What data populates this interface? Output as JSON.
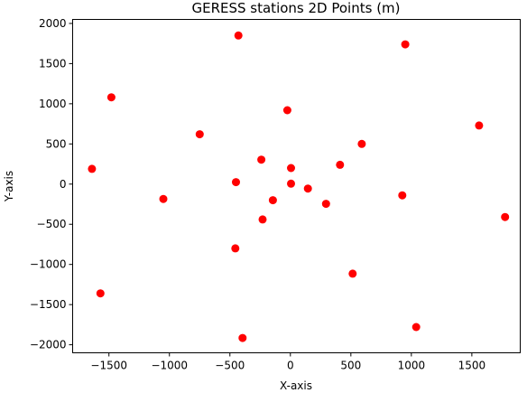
{
  "chart_data": {
    "type": "scatter",
    "title": "GERESS stations 2D Points (m)",
    "xlabel": "X-axis",
    "ylabel": "Y-axis",
    "xlim": [
      -1800,
      1900
    ],
    "ylim": [
      -2100,
      2050
    ],
    "xticks": [
      -1500,
      -1000,
      -500,
      0,
      500,
      1000,
      1500
    ],
    "yticks": [
      -2000,
      -1500,
      -1000,
      -500,
      0,
      500,
      1000,
      1500,
      2000
    ],
    "grid": false,
    "legend": "none",
    "marker_color": "#ff0000",
    "series": [
      {
        "points": [
          {
            "x": -430,
            "y": 1850
          },
          {
            "x": 950,
            "y": 1740
          },
          {
            "x": -1480,
            "y": 1080
          },
          {
            "x": -25,
            "y": 920
          },
          {
            "x": 1560,
            "y": 730
          },
          {
            "x": -750,
            "y": 620
          },
          {
            "x": 590,
            "y": 500
          },
          {
            "x": -240,
            "y": 305
          },
          {
            "x": 410,
            "y": 240
          },
          {
            "x": 5,
            "y": 200
          },
          {
            "x": -1640,
            "y": 190
          },
          {
            "x": -450,
            "y": 25
          },
          {
            "x": 5,
            "y": 5
          },
          {
            "x": 145,
            "y": -55
          },
          {
            "x": 925,
            "y": -140
          },
          {
            "x": -1050,
            "y": -185
          },
          {
            "x": -145,
            "y": -200
          },
          {
            "x": 295,
            "y": -245
          },
          {
            "x": 1775,
            "y": -410
          },
          {
            "x": -230,
            "y": -440
          },
          {
            "x": -455,
            "y": -800
          },
          {
            "x": 515,
            "y": -1115
          },
          {
            "x": -1570,
            "y": -1360
          },
          {
            "x": 1040,
            "y": -1780
          },
          {
            "x": -395,
            "y": -1915
          }
        ]
      }
    ]
  }
}
